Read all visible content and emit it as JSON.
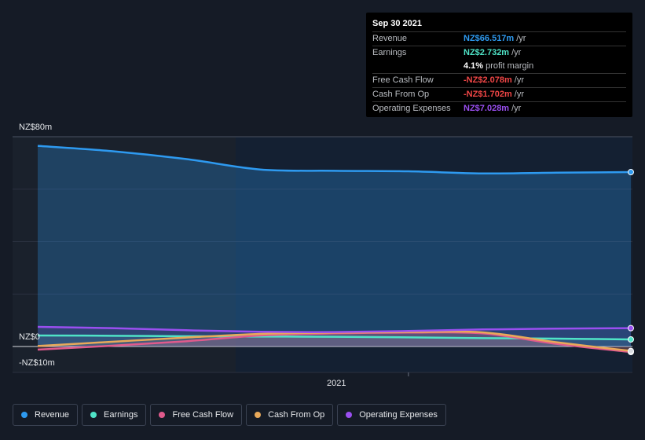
{
  "colors": {
    "revenue": "#2e9af0",
    "earnings": "#4fe3c7",
    "free_cash_flow": "#e05a8c",
    "cash_from_op": "#e8a95a",
    "operating_expenses": "#9a4ff0",
    "negative": "#f04646"
  },
  "tooltip": {
    "date": "Sep 30 2021",
    "rows": [
      {
        "label": "Revenue",
        "value": "NZ$66.517m",
        "unit": "/yr",
        "color": "#2e9af0"
      },
      {
        "label": "Earnings",
        "value": "NZ$2.732m",
        "unit": "/yr",
        "color": "#4fe3c7"
      },
      {
        "label": "",
        "value": "4.1%",
        "unit": "profit margin",
        "color": "#ffffff"
      },
      {
        "label": "Free Cash Flow",
        "value": "-NZ$2.078m",
        "unit": "/yr",
        "color": "#f04646"
      },
      {
        "label": "Cash From Op",
        "value": "-NZ$1.702m",
        "unit": "/yr",
        "color": "#f04646"
      },
      {
        "label": "Operating Expenses",
        "value": "NZ$7.028m",
        "unit": "/yr",
        "color": "#9a4ff0"
      }
    ]
  },
  "axis": {
    "y_top_label": "NZ$80m",
    "y_zero_label": "NZ$0",
    "y_bottom_label": "-NZ$10m",
    "x_tick_label": "2021"
  },
  "legend": [
    {
      "label": "Revenue",
      "icon": "revenue-dot",
      "color": "#2e9af0"
    },
    {
      "label": "Earnings",
      "icon": "earnings-dot",
      "color": "#4fe3c7"
    },
    {
      "label": "Free Cash Flow",
      "icon": "free-cash-flow-dot",
      "color": "#e05a8c"
    },
    {
      "label": "Cash From Op",
      "icon": "cash-from-op-dot",
      "color": "#e8a95a"
    },
    {
      "label": "Operating Expenses",
      "icon": "operating-expenses-dot",
      "color": "#9a4ff0"
    }
  ],
  "chart_data": {
    "type": "area",
    "title": "",
    "xlabel": "",
    "ylabel": "",
    "ylim": [
      -10,
      80
    ],
    "x_tick": {
      "label": "2021",
      "x": 2021.0
    },
    "x": [
      2019.75,
      2020.0,
      2020.25,
      2020.5,
      2020.75,
      2021.0,
      2021.25,
      2021.5,
      2021.75
    ],
    "series": [
      {
        "name": "Revenue",
        "values": [
          76.5,
          74.5,
          71.5,
          67.5,
          67.0,
          66.8,
          66.0,
          66.3,
          66.5
        ]
      },
      {
        "name": "Earnings",
        "values": [
          4.2,
          4.1,
          3.9,
          3.8,
          3.7,
          3.5,
          3.2,
          3.0,
          2.7
        ]
      },
      {
        "name": "Free Cash Flow",
        "values": [
          -1.2,
          0.3,
          2.0,
          4.2,
          5.0,
          5.3,
          5.0,
          1.0,
          -2.1
        ]
      },
      {
        "name": "Cash From Op",
        "values": [
          0.2,
          1.8,
          3.4,
          4.8,
          5.3,
          5.5,
          5.4,
          1.6,
          -1.7
        ]
      },
      {
        "name": "Operating Expenses",
        "values": [
          7.5,
          7.0,
          6.2,
          5.6,
          5.5,
          5.9,
          6.5,
          6.8,
          7.0
        ]
      }
    ]
  }
}
